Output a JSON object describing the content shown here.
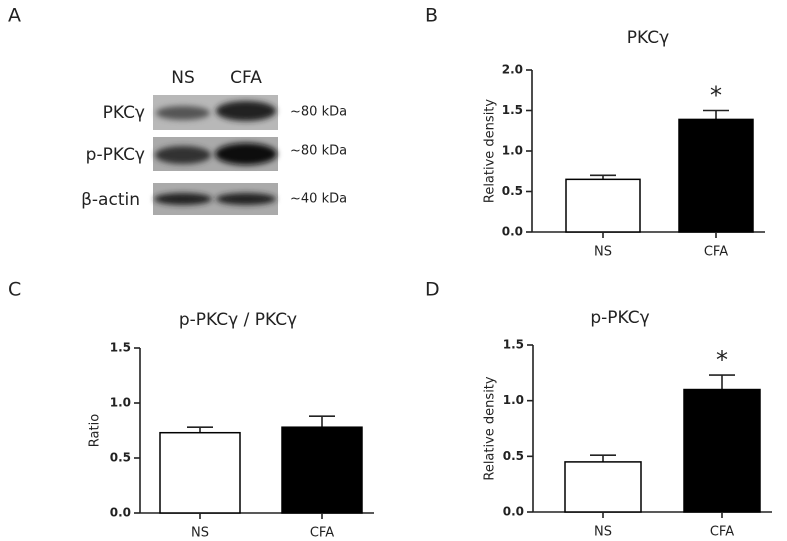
{
  "blot": {
    "panel": "A",
    "lanes": [
      "NS",
      "CFA"
    ],
    "rows": [
      {
        "label": "PKCγ",
        "size": "~80 kDa"
      },
      {
        "label": "p-PKCγ",
        "size": "~80 kDa"
      },
      {
        "label": "β-actin",
        "size": "~40 kDa"
      }
    ]
  },
  "chart_data": [
    {
      "type": "bar",
      "panel": "B",
      "title": "PKCγ",
      "y_label": "Relative density",
      "categories": [
        "NS",
        "CFA"
      ],
      "values": [
        0.65,
        1.39
      ],
      "errors": [
        0.05,
        0.11
      ],
      "colors": [
        "#ffffff",
        "#000000"
      ],
      "annotations": [
        null,
        "*"
      ],
      "ylim": [
        0,
        2
      ],
      "yticks": [
        {
          "value": 0,
          "label": "0.0"
        },
        {
          "value": 0.5,
          "label": "0.5"
        },
        {
          "value": 1,
          "label": "1.0"
        },
        {
          "value": 1.5,
          "label": "1.5"
        },
        {
          "value": 2,
          "label": "2.0"
        }
      ]
    },
    {
      "type": "bar",
      "panel": "C",
      "title": "p-PKCγ  / PKCγ",
      "y_label": "Ratio",
      "categories": [
        "NS",
        "CFA"
      ],
      "values": [
        0.73,
        0.78
      ],
      "errors": [
        0.05,
        0.1
      ],
      "colors": [
        "#ffffff",
        "#000000"
      ],
      "ylim": [
        0,
        1.5
      ],
      "yticks": [
        {
          "value": 0,
          "label": "0.0"
        },
        {
          "value": 0.5,
          "label": "0.5"
        },
        {
          "value": 1,
          "label": "1.0"
        },
        {
          "value": 1.5,
          "label": "1.5"
        }
      ]
    },
    {
      "type": "bar",
      "panel": "D",
      "title": "p-PKCγ",
      "y_label": "Relative density",
      "categories": [
        "NS",
        "CFA"
      ],
      "values": [
        0.45,
        1.1
      ],
      "errors": [
        0.06,
        0.13
      ],
      "colors": [
        "#ffffff",
        "#000000"
      ],
      "annotations": [
        null,
        "*"
      ],
      "ylim": [
        0,
        1.5
      ],
      "yticks": [
        {
          "value": 0,
          "label": "0.0"
        },
        {
          "value": 0.5,
          "label": "0.5"
        },
        {
          "value": 1,
          "label": "1.0"
        },
        {
          "value": 1.5,
          "label": "1.5"
        }
      ]
    }
  ]
}
